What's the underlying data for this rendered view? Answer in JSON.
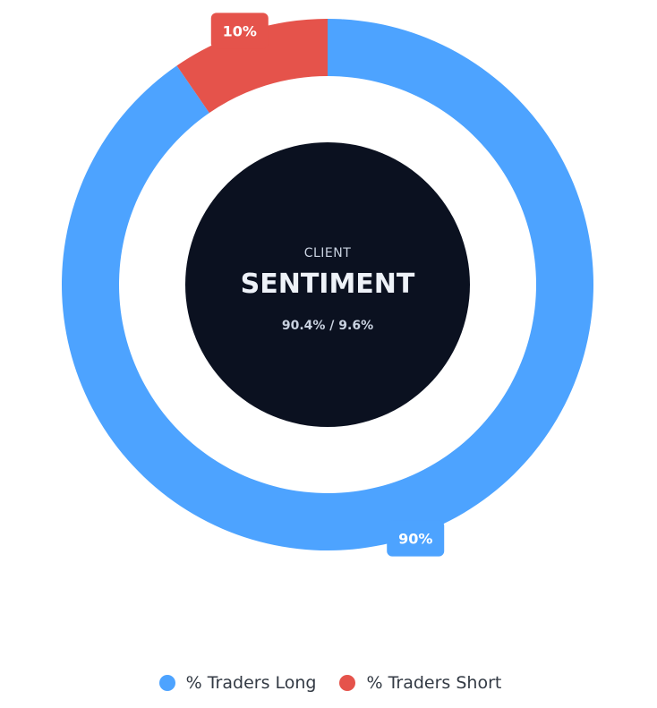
{
  "chart_data": {
    "type": "pie",
    "style": "donut",
    "categories": [
      "% Traders Long",
      "% Traders Short"
    ],
    "values": [
      90.4,
      9.6
    ],
    "data_labels": [
      "90%",
      "10%"
    ],
    "colors": [
      "#4DA3FF",
      "#E5534B"
    ],
    "legend_position": "bottom",
    "center": {
      "subtitle": "CLIENT",
      "title": "SENTIMENT",
      "values_text": "90.4% / 9.6%",
      "background": "#0B1120"
    }
  },
  "legend": {
    "items": [
      {
        "label": "% Traders Long",
        "color": "#4DA3FF"
      },
      {
        "label": "% Traders Short",
        "color": "#E5534B"
      }
    ]
  }
}
